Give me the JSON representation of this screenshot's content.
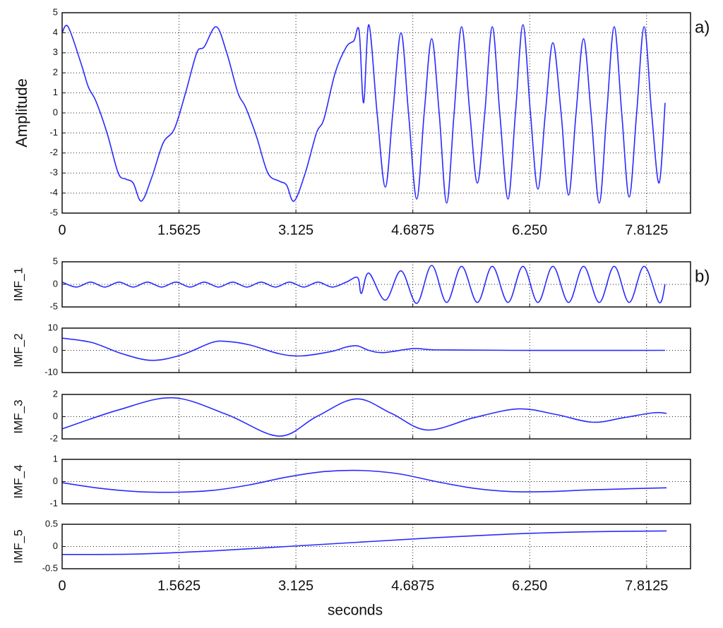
{
  "chart_data": [
    {
      "type": "line",
      "ylabel": "Amplitude",
      "annotation": "a)",
      "xlim": [
        0,
        8.4
      ],
      "ylim": [
        -5,
        5
      ],
      "xticks": [
        0,
        1.5625,
        3.125,
        4.6875,
        {
          "value": 6.25,
          "label": "6.250"
        },
        7.8125
      ],
      "yticks": [
        -5,
        -4,
        -3,
        -2,
        -1,
        0,
        1,
        2,
        3,
        4,
        5
      ],
      "grid": true,
      "xtick_labels": true,
      "x": [
        0,
        0.08,
        0.25,
        0.35,
        0.45,
        0.6,
        0.75,
        0.85,
        0.95,
        1.06,
        1.2,
        1.35,
        1.5,
        1.65,
        1.8,
        1.9,
        2.06,
        2.2,
        2.35,
        2.45,
        2.6,
        2.75,
        2.9,
        3.0,
        3.1,
        3.25,
        3.4,
        3.5,
        3.65,
        3.8,
        3.9,
        3.97,
        4.03,
        4.1,
        4.21,
        4.32,
        4.42,
        4.53,
        4.63,
        4.74,
        4.84,
        4.94,
        5.04,
        5.14,
        5.24,
        5.34,
        5.45,
        5.55,
        5.65,
        5.75,
        5.85,
        5.96,
        6.06,
        6.16,
        6.26,
        6.36,
        6.46,
        6.56,
        6.67,
        6.77,
        6.87,
        6.97,
        7.07,
        7.18,
        7.28,
        7.38,
        7.48,
        7.58,
        7.68,
        7.78,
        7.88,
        7.98,
        8.06
      ],
      "series": [
        {
          "color": "#2a2aff",
          "values": [
            4.0,
            4.3,
            2.5,
            1.3,
            0.6,
            -1.0,
            -3.0,
            -3.3,
            -3.5,
            -4.4,
            -3.2,
            -1.5,
            -0.8,
            1.0,
            3.0,
            3.3,
            4.3,
            3.0,
            1.0,
            0.3,
            -1.2,
            -3.0,
            -3.4,
            -3.6,
            -4.4,
            -3.0,
            -1.0,
            -0.3,
            2.0,
            3.3,
            3.6,
            4.1,
            0.5,
            4.4,
            0,
            -3.7,
            0,
            4.0,
            0,
            -4.3,
            0,
            3.7,
            0,
            -4.5,
            0,
            4.3,
            0,
            -3.5,
            0,
            4.3,
            0,
            -4.3,
            0,
            4.4,
            0,
            -3.8,
            0,
            3.5,
            0,
            -4.1,
            0,
            3.7,
            0,
            -4.5,
            0,
            4.3,
            0,
            -4.2,
            0,
            4.3,
            0,
            -3.5,
            0.5
          ]
        }
      ]
    },
    {
      "type": "line",
      "ylabel": "IMF_1",
      "annotation": "b)",
      "xlim": [
        0,
        8.4
      ],
      "ylim": [
        -5,
        5
      ],
      "xticks": [
        0,
        1.5625,
        3.125,
        4.6875,
        6.25,
        7.8125
      ],
      "yticks": [
        -5,
        0,
        5
      ],
      "grid": true,
      "xtick_labels": false,
      "x": [
        0,
        0.19,
        0.38,
        0.57,
        0.76,
        0.95,
        1.14,
        1.33,
        1.52,
        1.71,
        1.9,
        2.09,
        2.28,
        2.47,
        2.66,
        2.85,
        3.04,
        3.23,
        3.42,
        3.61,
        3.8,
        3.95,
        4.0,
        4.1,
        4.32,
        4.53,
        4.74,
        4.94,
        5.14,
        5.34,
        5.55,
        5.75,
        5.96,
        6.16,
        6.36,
        6.56,
        6.77,
        6.97,
        7.18,
        7.38,
        7.58,
        7.78,
        7.98,
        8.06
      ],
      "series": [
        {
          "color": "#2a2aff",
          "values": [
            0.5,
            -0.6,
            0.5,
            -0.6,
            0.5,
            -0.6,
            0.5,
            -0.6,
            0.5,
            -0.6,
            0.5,
            -0.6,
            0.5,
            -0.6,
            0.5,
            -0.6,
            0.5,
            -0.6,
            0.5,
            -0.6,
            0.5,
            1.5,
            -2.0,
            2.5,
            -3.5,
            3.0,
            -4.2,
            4.2,
            -4.0,
            4.0,
            -4.0,
            4.0,
            -4.0,
            4.0,
            -4.0,
            4.0,
            -4.0,
            4.0,
            -4.0,
            4.0,
            -4.0,
            4.0,
            -4.0,
            0
          ]
        }
      ]
    },
    {
      "type": "line",
      "ylabel": "IMF_2",
      "xlim": [
        0,
        8.4
      ],
      "ylim": [
        -10,
        10
      ],
      "xticks": [
        0,
        1.5625,
        3.125,
        4.6875,
        6.25,
        7.8125
      ],
      "yticks": [
        -10,
        0,
        10
      ],
      "grid": true,
      "xtick_labels": false,
      "x": [
        0,
        0.4,
        0.8,
        1.2,
        1.6,
        2.0,
        2.2,
        2.5,
        2.9,
        3.2,
        3.6,
        3.8,
        3.95,
        4.1,
        4.3,
        4.7,
        5.0,
        6.0,
        8.06
      ],
      "series": [
        {
          "color": "#2a2aff",
          "values": [
            5.5,
            3.5,
            -1.5,
            -4.5,
            -2,
            3.5,
            4,
            2.5,
            -1.5,
            -2.5,
            -0.5,
            1.5,
            2,
            0,
            -1,
            0.8,
            0.2,
            0,
            0
          ]
        }
      ]
    },
    {
      "type": "line",
      "ylabel": "IMF_3",
      "xlim": [
        0,
        8.4
      ],
      "ylim": [
        -2,
        2
      ],
      "xticks": [
        0,
        1.5625,
        3.125,
        4.6875,
        6.25,
        7.8125
      ],
      "yticks": [
        -2,
        0,
        2
      ],
      "grid": true,
      "xtick_labels": false,
      "x": [
        0,
        0.75,
        1.48,
        2.2,
        2.9,
        3.4,
        3.93,
        4.4,
        4.88,
        5.5,
        6.1,
        6.6,
        7.09,
        7.5,
        7.9,
        8.08
      ],
      "series": [
        {
          "color": "#2a2aff",
          "values": [
            -1.1,
            0.6,
            1.7,
            0.2,
            -1.75,
            0,
            1.6,
            0.3,
            -1.2,
            -0.1,
            0.7,
            0.2,
            -0.5,
            -0.1,
            0.35,
            0.3
          ]
        }
      ]
    },
    {
      "type": "line",
      "ylabel": "IMF_4",
      "xlim": [
        0,
        8.4
      ],
      "ylim": [
        -1,
        1
      ],
      "xticks": [
        0,
        1.5625,
        3.125,
        4.6875,
        6.25,
        7.8125
      ],
      "yticks": [
        -1,
        0,
        1
      ],
      "grid": true,
      "xtick_labels": false,
      "x": [
        0,
        0.5,
        1.0,
        1.5,
        2.0,
        2.5,
        3.0,
        3.5,
        4.0,
        4.5,
        5.0,
        5.5,
        6.0,
        6.5,
        7.0,
        7.5,
        8.08
      ],
      "series": [
        {
          "color": "#2a2aff",
          "values": [
            -0.05,
            -0.3,
            -0.45,
            -0.48,
            -0.4,
            -0.15,
            0.2,
            0.45,
            0.5,
            0.35,
            0.0,
            -0.3,
            -0.45,
            -0.45,
            -0.38,
            -0.33,
            -0.28
          ]
        }
      ]
    },
    {
      "type": "line",
      "ylabel": "IMF_5",
      "xlabel": "seconds",
      "xlim": [
        0,
        8.4
      ],
      "ylim": [
        -0.5,
        0.5
      ],
      "xticks": [
        0,
        1.5625,
        3.125,
        4.6875,
        {
          "value": 6.25,
          "label": "6.250"
        },
        7.8125
      ],
      "yticks": [
        -0.5,
        0,
        0.5
      ],
      "grid": true,
      "xtick_labels": true,
      "x": [
        0,
        1,
        2,
        3,
        4,
        5,
        6,
        7,
        8.08
      ],
      "series": [
        {
          "color": "#2a2aff",
          "values": [
            -0.18,
            -0.17,
            -0.1,
            0,
            0.1,
            0.2,
            0.28,
            0.33,
            0.35
          ]
        }
      ]
    }
  ]
}
